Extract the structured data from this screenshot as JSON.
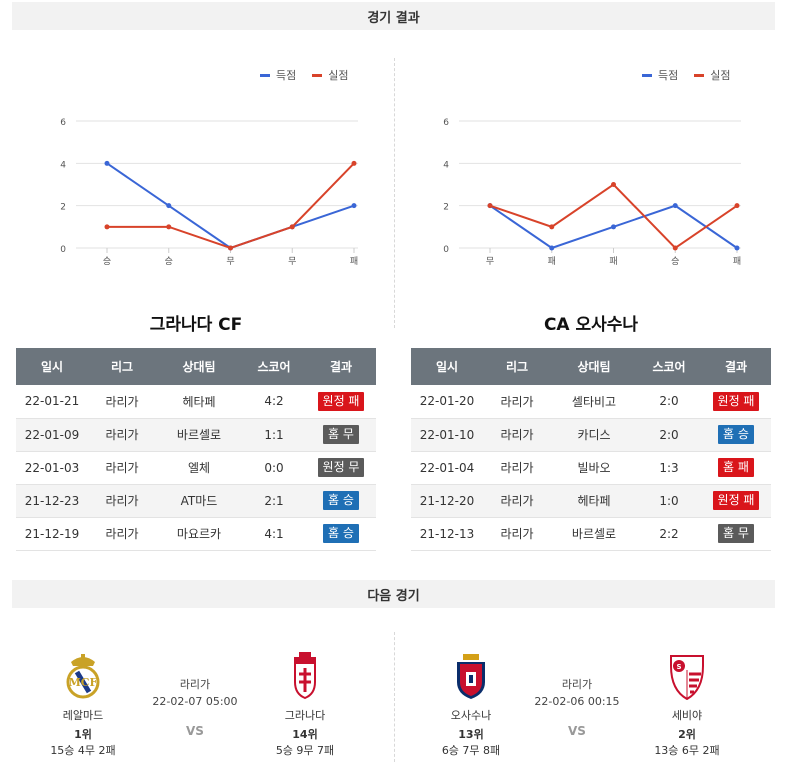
{
  "results_header": "경기 결과",
  "next_header": "다음 경기",
  "legend": {
    "scored": "득점",
    "conceded": "실점"
  },
  "colors": {
    "scored": "#3a66d6",
    "conceded": "#d8432a",
    "lose": "#d9151b",
    "draw": "#5b5b5b",
    "win": "#1f6fb5"
  },
  "chart_data": [
    {
      "type": "line",
      "categories": [
        "승",
        "승",
        "무",
        "무",
        "패"
      ],
      "series": [
        {
          "name": "득점",
          "values": [
            4,
            2,
            0,
            1,
            2
          ]
        },
        {
          "name": "실점",
          "values": [
            1,
            1,
            0,
            1,
            4
          ]
        }
      ],
      "y_ticks": [
        "0",
        "2",
        "4",
        "6"
      ],
      "ylim": [
        0,
        6
      ],
      "grid": true,
      "legend_position": "top-right"
    },
    {
      "type": "line",
      "categories": [
        "무",
        "패",
        "패",
        "승",
        "패"
      ],
      "series": [
        {
          "name": "득점",
          "values": [
            2,
            0,
            1,
            2,
            0
          ]
        },
        {
          "name": "실점",
          "values": [
            2,
            1,
            3,
            0,
            2
          ]
        }
      ],
      "y_ticks": [
        "0",
        "2",
        "4",
        "6"
      ],
      "ylim": [
        0,
        6
      ],
      "grid": true,
      "legend_position": "top-right"
    }
  ],
  "left": {
    "team": "그라나다 CF",
    "columns": [
      "일시",
      "리그",
      "상대팀",
      "스코어",
      "결과"
    ],
    "rows": [
      {
        "date": "22-01-21",
        "league": "라리가",
        "opponent": "헤타페",
        "score": "4:2",
        "result": "원정 패",
        "type": "lose"
      },
      {
        "date": "22-01-09",
        "league": "라리가",
        "opponent": "바르셀로",
        "score": "1:1",
        "result": "홈 무",
        "type": "draw"
      },
      {
        "date": "22-01-03",
        "league": "라리가",
        "opponent": "엘체",
        "score": "0:0",
        "result": "원정 무",
        "type": "draw"
      },
      {
        "date": "21-12-23",
        "league": "라리가",
        "opponent": "AT마드",
        "score": "2:1",
        "result": "홈 승",
        "type": "win"
      },
      {
        "date": "21-12-19",
        "league": "라리가",
        "opponent": "마요르카",
        "score": "4:1",
        "result": "홈 승",
        "type": "win"
      }
    ]
  },
  "right": {
    "team": "CA 오사수나",
    "columns": [
      "일시",
      "리그",
      "상대팀",
      "스코어",
      "결과"
    ],
    "rows": [
      {
        "date": "22-01-20",
        "league": "라리가",
        "opponent": "셀타비고",
        "score": "2:0",
        "result": "원정 패",
        "type": "lose"
      },
      {
        "date": "22-01-10",
        "league": "라리가",
        "opponent": "카디스",
        "score": "2:0",
        "result": "홈 승",
        "type": "win"
      },
      {
        "date": "22-01-04",
        "league": "라리가",
        "opponent": "빌바오",
        "score": "1:3",
        "result": "홈 패",
        "type": "lose"
      },
      {
        "date": "21-12-20",
        "league": "라리가",
        "opponent": "헤타페",
        "score": "1:0",
        "result": "원정 패",
        "type": "lose"
      },
      {
        "date": "21-12-13",
        "league": "라리가",
        "opponent": "바르셀로",
        "score": "2:2",
        "result": "홈 무",
        "type": "draw"
      }
    ]
  },
  "next_left": {
    "home": {
      "name": "레알마드",
      "rank": "1위",
      "record": "15승 4무 2패",
      "crest": "real-madrid-crest"
    },
    "away": {
      "name": "그라나다",
      "rank": "14위",
      "record": "5승 9무 7패",
      "crest": "granada-crest"
    },
    "league": "라리가",
    "datetime": "22-02-07 05:00",
    "vs": "VS"
  },
  "next_right": {
    "home": {
      "name": "오사수나",
      "rank": "13위",
      "record": "6승 7무 8패",
      "crest": "osasuna-crest"
    },
    "away": {
      "name": "세비야",
      "rank": "2위",
      "record": "13승 6무 2패",
      "crest": "sevilla-crest"
    },
    "league": "라리가",
    "datetime": "22-02-06 00:15",
    "vs": "VS"
  }
}
